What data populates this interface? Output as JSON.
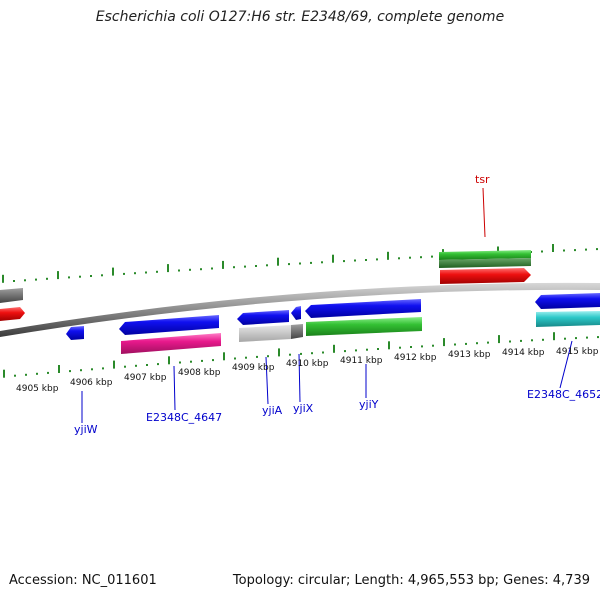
{
  "title": "Escherichia coli O127:H6 str. E2348/69, complete genome",
  "footer": {
    "accession": "Accession: NC_011601",
    "summary": "Topology: circular; Length: 4,965,553 bp; Genes: 4,739"
  },
  "colors": {
    "backbone": "#808080",
    "forward_gene": "#0000ee",
    "rna_pink": "#e8198c",
    "green": "#22bb22",
    "red": "#ee1111",
    "cyan": "#22cccc",
    "grey": "#bbbbbb",
    "tick": "#2a8a2a",
    "label_line": "#0000cc",
    "rna_label": "#cc0000"
  },
  "scale_ticks": [
    "4905 kbp",
    "4906 kbp",
    "4907 kbp",
    "4908 kbp",
    "4909 kbp",
    "4910 kbp",
    "4911 kbp",
    "4912 kbp",
    "4913 kbp",
    "4914 kbp",
    "4915 kbp"
  ],
  "gene_labels": [
    {
      "id": "yjiW",
      "text": "yjiW"
    },
    {
      "id": "E2348C_4647",
      "text": "E2348C_4647"
    },
    {
      "id": "yjiA",
      "text": "yjiA"
    },
    {
      "id": "yjiX",
      "text": "yjiX"
    },
    {
      "id": "yjiY",
      "text": "yjiY"
    },
    {
      "id": "E2348C_4652",
      "text": "E2348C_4652"
    },
    {
      "id": "tsr",
      "text": "tsr"
    }
  ]
}
